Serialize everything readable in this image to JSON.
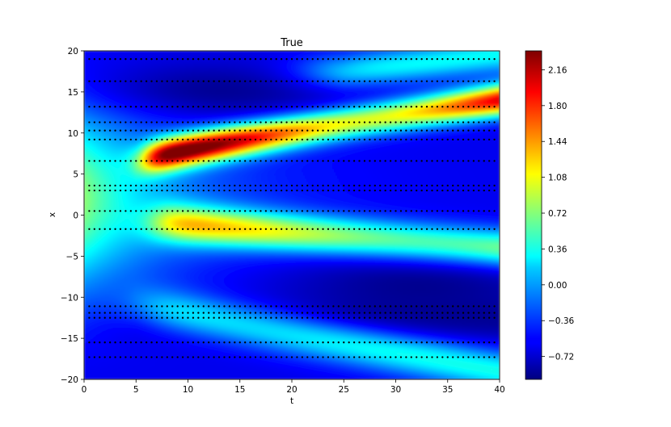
{
  "chart_data": {
    "type": "heatmap",
    "title": "True",
    "xlabel": "t",
    "ylabel": "x",
    "xlim": [
      0,
      40
    ],
    "ylim": [
      -20,
      20
    ],
    "x_ticks": [
      0,
      5,
      10,
      15,
      20,
      25,
      30,
      35,
      40
    ],
    "y_ticks": [
      -20,
      -15,
      -10,
      -5,
      0,
      5,
      10,
      15,
      20
    ],
    "colormap": "jet",
    "color_range": [
      -0.95,
      2.35
    ],
    "colorbar_ticks": [
      "−0.72",
      "−0.36",
      "0.00",
      "0.36",
      "0.72",
      "1.08",
      "1.44",
      "1.80",
      "2.16"
    ],
    "colorbar_tick_values": [
      -0.72,
      -0.36,
      0.0,
      0.36,
      0.72,
      1.08,
      1.44,
      1.8,
      2.16
    ],
    "field_features": [
      {
        "feature": "upper soliton ridge",
        "t_start": 5,
        "x_start": 6.5,
        "t_end": 40,
        "x_end": 14,
        "peak_value": 2.3
      },
      {
        "feature": "lower ridge",
        "t_start": 8,
        "x_start": -1,
        "t_end": 40,
        "x_end": -4,
        "peak_value": 1.1
      },
      {
        "feature": "left band",
        "t": 0,
        "x_range": [
          -8,
          12
        ],
        "value": 0.9
      },
      {
        "feature": "bottom ridge",
        "t_start": 5,
        "x_start": -11,
        "t_end": 40,
        "x_end": -19,
        "peak_value": 0.4
      },
      {
        "feature": "top ridge",
        "t_start": 25,
        "x_start": 17.5,
        "t_end": 40,
        "x_end": 19.5,
        "peak_value": 0.4
      }
    ],
    "sample_rows_x": [
      19,
      16.3,
      13.2,
      11.3,
      10.3,
      9.2,
      6.6,
      3.6,
      3.0,
      0.5,
      -1.7,
      -11.1,
      -11.9,
      -12.5,
      -15.5,
      -17.3
    ],
    "sample_t": [
      0.5,
      1.0,
      1.5,
      2.0,
      2.5,
      3.0,
      3.5,
      4.0,
      4.5,
      5.0,
      5.5,
      6.0,
      6.5,
      7.0,
      7.5,
      8.0,
      8.5,
      9.0,
      9.5,
      10.0,
      10.5,
      11.0,
      11.5,
      12.0,
      12.5,
      13.0,
      13.5,
      14.0,
      14.5,
      15.0,
      15.5,
      16.0,
      16.5,
      17.0,
      17.5,
      18.0,
      18.5,
      19.0,
      19.5,
      20.0,
      20.5,
      21.0,
      21.5,
      22.0,
      22.5,
      23.0,
      23.5,
      24.0,
      24.5,
      25.0,
      25.5,
      26.0,
      26.5,
      27.0,
      27.5,
      28.0,
      28.5,
      29.0,
      29.5,
      30.0,
      30.5,
      31.0,
      31.5,
      32.0,
      32.5,
      33.0,
      33.5,
      34.0,
      34.5,
      35.0,
      35.5,
      36.0,
      36.5,
      37.0,
      37.5,
      38.0,
      38.5,
      39.0,
      39.5
    ]
  }
}
